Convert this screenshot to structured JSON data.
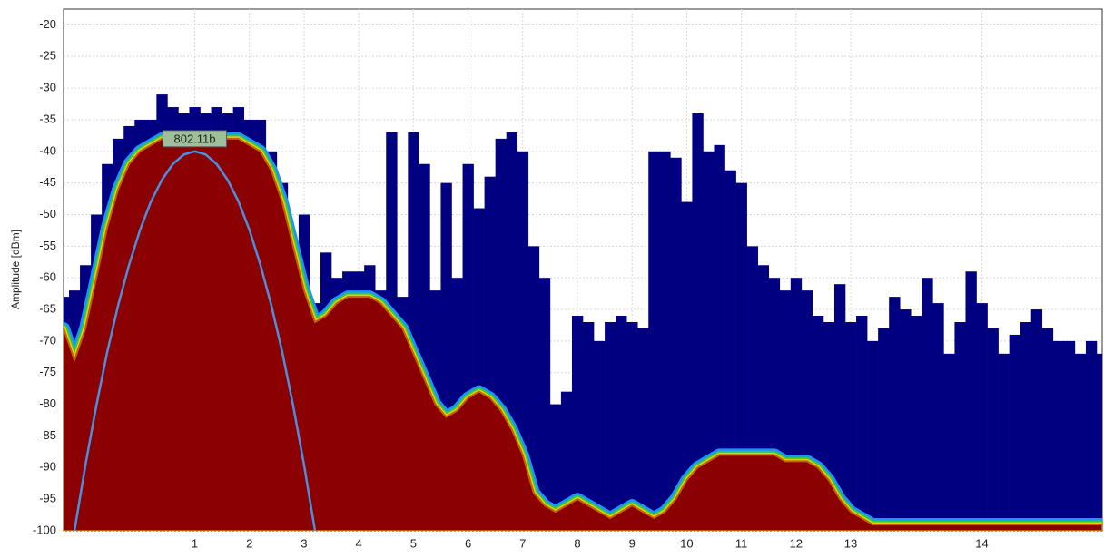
{
  "chart_data": {
    "type": "spectrum",
    "y_label": "Amplitude [dBm]",
    "xlim": [
      2400,
      2495
    ],
    "ylim": [
      -100,
      -17.5
    ],
    "grid": true,
    "yticks": [
      -20,
      -25,
      -30,
      -35,
      -40,
      -45,
      -50,
      -55,
      -60,
      -65,
      -70,
      -75,
      -80,
      -85,
      -90,
      -95,
      -100
    ],
    "xticks": [
      {
        "value": 2412,
        "label": "1"
      },
      {
        "value": 2417,
        "label": "2"
      },
      {
        "value": 2422,
        "label": "3"
      },
      {
        "value": 2427,
        "label": "4"
      },
      {
        "value": 2432,
        "label": "5"
      },
      {
        "value": 2437,
        "label": "6"
      },
      {
        "value": 2442,
        "label": "7"
      },
      {
        "value": 2447,
        "label": "8"
      },
      {
        "value": 2452,
        "label": "9"
      },
      {
        "value": 2457,
        "label": "10"
      },
      {
        "value": 2462,
        "label": "11"
      },
      {
        "value": 2467,
        "label": "12"
      },
      {
        "value": 2472,
        "label": "13"
      },
      {
        "value": 2484,
        "label": "14"
      }
    ],
    "x": [
      2400,
      2401,
      2402,
      2403,
      2404,
      2405,
      2406,
      2407,
      2408,
      2409,
      2410,
      2411,
      2412,
      2413,
      2414,
      2415,
      2416,
      2417,
      2418,
      2419,
      2420,
      2421,
      2422,
      2423,
      2424,
      2425,
      2426,
      2427,
      2428,
      2429,
      2430,
      2431,
      2432,
      2433,
      2434,
      2435,
      2436,
      2437,
      2438,
      2439,
      2440,
      2441,
      2442,
      2443,
      2444,
      2445,
      2446,
      2447,
      2448,
      2449,
      2450,
      2451,
      2452,
      2453,
      2454,
      2455,
      2456,
      2457,
      2458,
      2459,
      2460,
      2461,
      2462,
      2463,
      2464,
      2465,
      2466,
      2467,
      2468,
      2469,
      2470,
      2471,
      2472,
      2473,
      2474,
      2475,
      2476,
      2477,
      2478,
      2479,
      2480,
      2481,
      2482,
      2483,
      2484,
      2485,
      2486,
      2487,
      2488,
      2489,
      2490,
      2491,
      2492,
      2493,
      2494,
      2495
    ],
    "series": [
      {
        "color": "#000080",
        "values": [
          -63,
          -62,
          -58,
          -50,
          -42,
          -38,
          -36,
          -35,
          -35,
          -31,
          -33,
          -34,
          -33,
          -34,
          -33,
          -34,
          -33,
          -35,
          -35,
          -40,
          -45,
          -55,
          -50,
          -64,
          -56,
          -60,
          -59,
          -59,
          -58,
          -62,
          -37,
          -63,
          -37,
          -42,
          -62,
          -45,
          -60,
          -42,
          -49,
          -44,
          -38,
          -37,
          -40,
          -55,
          -60,
          -80,
          -78,
          -66,
          -67,
          -70,
          -67,
          -66,
          -67,
          -68,
          -40,
          -40,
          -41,
          -48,
          -34,
          -40,
          -39,
          -43,
          -45,
          -55,
          -58,
          -60,
          -62,
          -60,
          -62,
          -66,
          -67,
          -61,
          -67,
          -66,
          -70,
          -68,
          -63,
          -65,
          -66,
          -60,
          -64,
          -72,
          -67,
          -59,
          -64,
          -68,
          -72,
          -69,
          -67,
          -65,
          -68,
          -70,
          -70,
          -72,
          -70,
          -72
        ]
      },
      {
        "color": "#8b0000",
        "values": [
          -68,
          -73,
          -68,
          -60,
          -52,
          -46,
          -42,
          -40,
          -39,
          -38,
          -38,
          -38,
          -38,
          -38,
          -38,
          -38,
          -38,
          -39,
          -40,
          -43,
          -48,
          -55,
          -62,
          -67,
          -66,
          -64,
          -63,
          -63,
          -63,
          -64,
          -66,
          -68,
          -72,
          -76,
          -80,
          -82,
          -81,
          -79,
          -78,
          -79,
          -81,
          -84,
          -88,
          -94,
          -96,
          -97,
          -96,
          -95,
          -96,
          -97,
          -98,
          -97,
          -96,
          -97,
          -98,
          -97,
          -95,
          -92,
          -90,
          -89,
          -88,
          -88,
          -88,
          -88,
          -88,
          -88,
          -89,
          -89,
          -89,
          -90,
          -92,
          -95,
          -97,
          -98,
          -99,
          -99,
          -99,
          -99,
          -99,
          -99,
          -99,
          -99,
          -99,
          -99,
          -99,
          -99,
          -99,
          -99,
          -99,
          -99,
          -99,
          -99,
          -99,
          -99,
          -99,
          -99
        ]
      }
    ],
    "overlay": {
      "name": "802.11b",
      "color": "#4a8fe0",
      "x": [
        2401,
        2402,
        2403,
        2404,
        2405,
        2406,
        2407,
        2408,
        2409,
        2410,
        2411,
        2412,
        2413,
        2414,
        2415,
        2416,
        2417,
        2418,
        2419,
        2420,
        2421,
        2422,
        2423
      ],
      "values": [
        -100,
        -89.6,
        -80.2,
        -71.7,
        -64.3,
        -57.9,
        -52.4,
        -47.9,
        -44.5,
        -42,
        -40.5,
        -40,
        -40.5,
        -42,
        -44.5,
        -47.9,
        -52.4,
        -57.9,
        -64.3,
        -71.7,
        -80.2,
        -89.6,
        -100
      ]
    }
  }
}
